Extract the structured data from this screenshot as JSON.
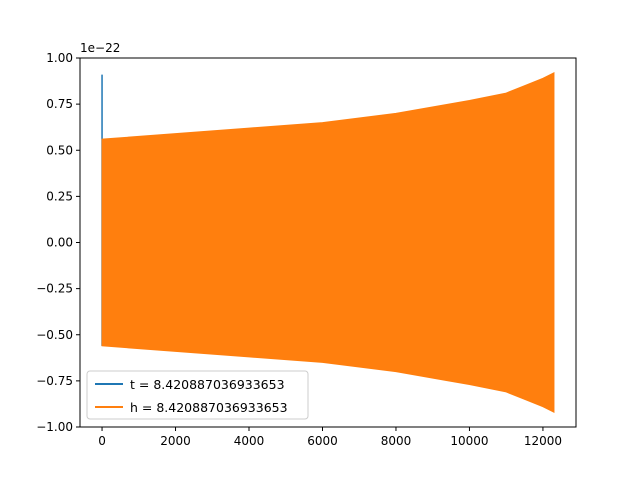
{
  "chart_data": {
    "type": "line",
    "title": "",
    "xlabel": "",
    "ylabel": "",
    "xlim": [
      -600,
      12900
    ],
    "ylim": [
      -1.0,
      1.0
    ],
    "y_offset_text": "1e−22",
    "x_ticks": [
      0,
      2000,
      4000,
      6000,
      8000,
      10000,
      12000
    ],
    "x_tick_labels": [
      "0",
      "2000",
      "4000",
      "6000",
      "8000",
      "10000",
      "12000"
    ],
    "y_ticks": [
      -1.0,
      -0.75,
      -0.5,
      -0.25,
      0.0,
      0.25,
      0.5,
      0.75,
      1.0
    ],
    "y_tick_labels": [
      "−1.00",
      "−0.75",
      "−0.50",
      "−0.25",
      "0.00",
      "0.25",
      "0.50",
      "0.75",
      "1.00"
    ],
    "grid": false,
    "legend_position": "lower-left",
    "series": [
      {
        "name": "t = 8.420887036933653",
        "color": "#1f77b4",
        "kind": "spike",
        "x": [
          0,
          0,
          0,
          0
        ],
        "y": [
          -0.1,
          0.91,
          -0.56,
          0.56
        ]
      },
      {
        "name": "h = 8.420887036933653",
        "color": "#ff7f0e",
        "kind": "oscillation-envelope",
        "x": [
          0,
          2000,
          4000,
          6000,
          8000,
          10000,
          11000,
          11500,
          12000,
          12300
        ],
        "upper": [
          0.56,
          0.59,
          0.62,
          0.65,
          0.7,
          0.77,
          0.81,
          0.85,
          0.89,
          0.92
        ],
        "lower": [
          -0.56,
          -0.59,
          -0.62,
          -0.65,
          -0.7,
          -0.77,
          -0.81,
          -0.85,
          -0.89,
          -0.92
        ]
      }
    ]
  }
}
